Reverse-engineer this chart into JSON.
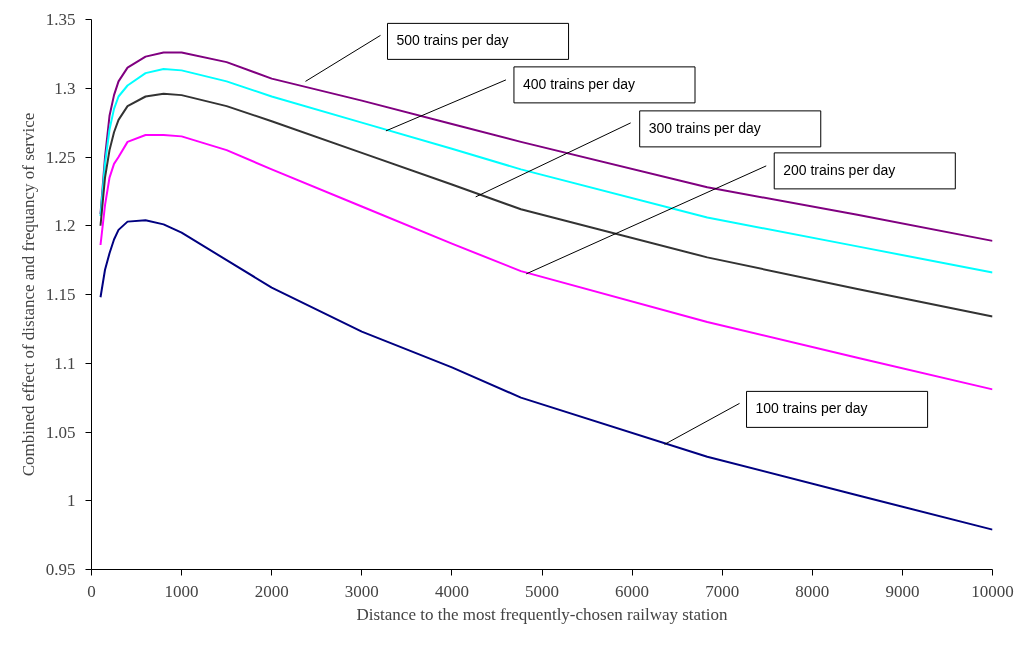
{
  "chart_data": {
    "type": "line",
    "xlabel": "Distance to the most frequently-chosen railway station",
    "ylabel": "Combined effect of distance and frequancy of service",
    "x": [
      100,
      150,
      200,
      250,
      300,
      400,
      600,
      800,
      1000,
      1500,
      2000,
      3000,
      4000,
      4766,
      6834,
      8500,
      10000
    ],
    "series": [
      {
        "color": "#800080",
        "values": [
          1.2085,
          1.25,
          1.28,
          1.295,
          1.305,
          1.315,
          1.323,
          1.326,
          1.326,
          1.319,
          1.307,
          1.291,
          1.274,
          1.261,
          1.228,
          1.208,
          1.189
        ]
      },
      {
        "color": "#00ffff",
        "values": [
          1.207,
          1.245,
          1.27,
          1.285,
          1.294,
          1.302,
          1.311,
          1.314,
          1.313,
          1.305,
          1.294,
          1.275,
          1.256,
          1.241,
          1.206,
          1.185,
          1.166
        ]
      },
      {
        "color": "#333333",
        "values": [
          1.2,
          1.235,
          1.255,
          1.268,
          1.277,
          1.287,
          1.294,
          1.296,
          1.295,
          1.287,
          1.276,
          1.253,
          1.23,
          1.212,
          1.177,
          1.154,
          1.134
        ]
      },
      {
        "color": "#ff00ff",
        "values": [
          1.186,
          1.215,
          1.235,
          1.245,
          1.25,
          1.261,
          1.266,
          1.266,
          1.265,
          1.255,
          1.241,
          1.214,
          1.187,
          1.167,
          1.13,
          1.104,
          1.081
        ]
      },
      {
        "color": "#000080",
        "values": [
          1.148,
          1.168,
          1.18,
          1.19,
          1.197,
          1.203,
          1.204,
          1.201,
          1.195,
          1.175,
          1.155,
          1.123,
          1.097,
          1.075,
          1.032,
          1.004,
          0.979
        ]
      }
    ],
    "xlim": [
      0,
      10000
    ],
    "ylim": [
      0.95,
      1.35
    ],
    "xticks": [
      0,
      1000,
      2000,
      3000,
      4000,
      5000,
      6000,
      7000,
      8000,
      9000,
      10000
    ],
    "yticks": [
      0.95,
      1,
      1.05,
      1.1,
      1.15,
      1.2,
      1.25,
      1.3,
      1.35
    ],
    "annotations": [
      {
        "text": "500 trains per day",
        "x": 2375,
        "y": 1.305
      },
      {
        "text": "400 trains per day",
        "x": 3268,
        "y": 1.269
      },
      {
        "text": "300 trains per day",
        "x": 4264,
        "y": 1.221
      },
      {
        "text": "200 trains per day",
        "x": 4825,
        "y": 1.165
      },
      {
        "text": "100 trains per day",
        "x": 6360,
        "y": 1.041
      }
    ],
    "grid": false,
    "marker": "none",
    "line_style": "solid"
  }
}
